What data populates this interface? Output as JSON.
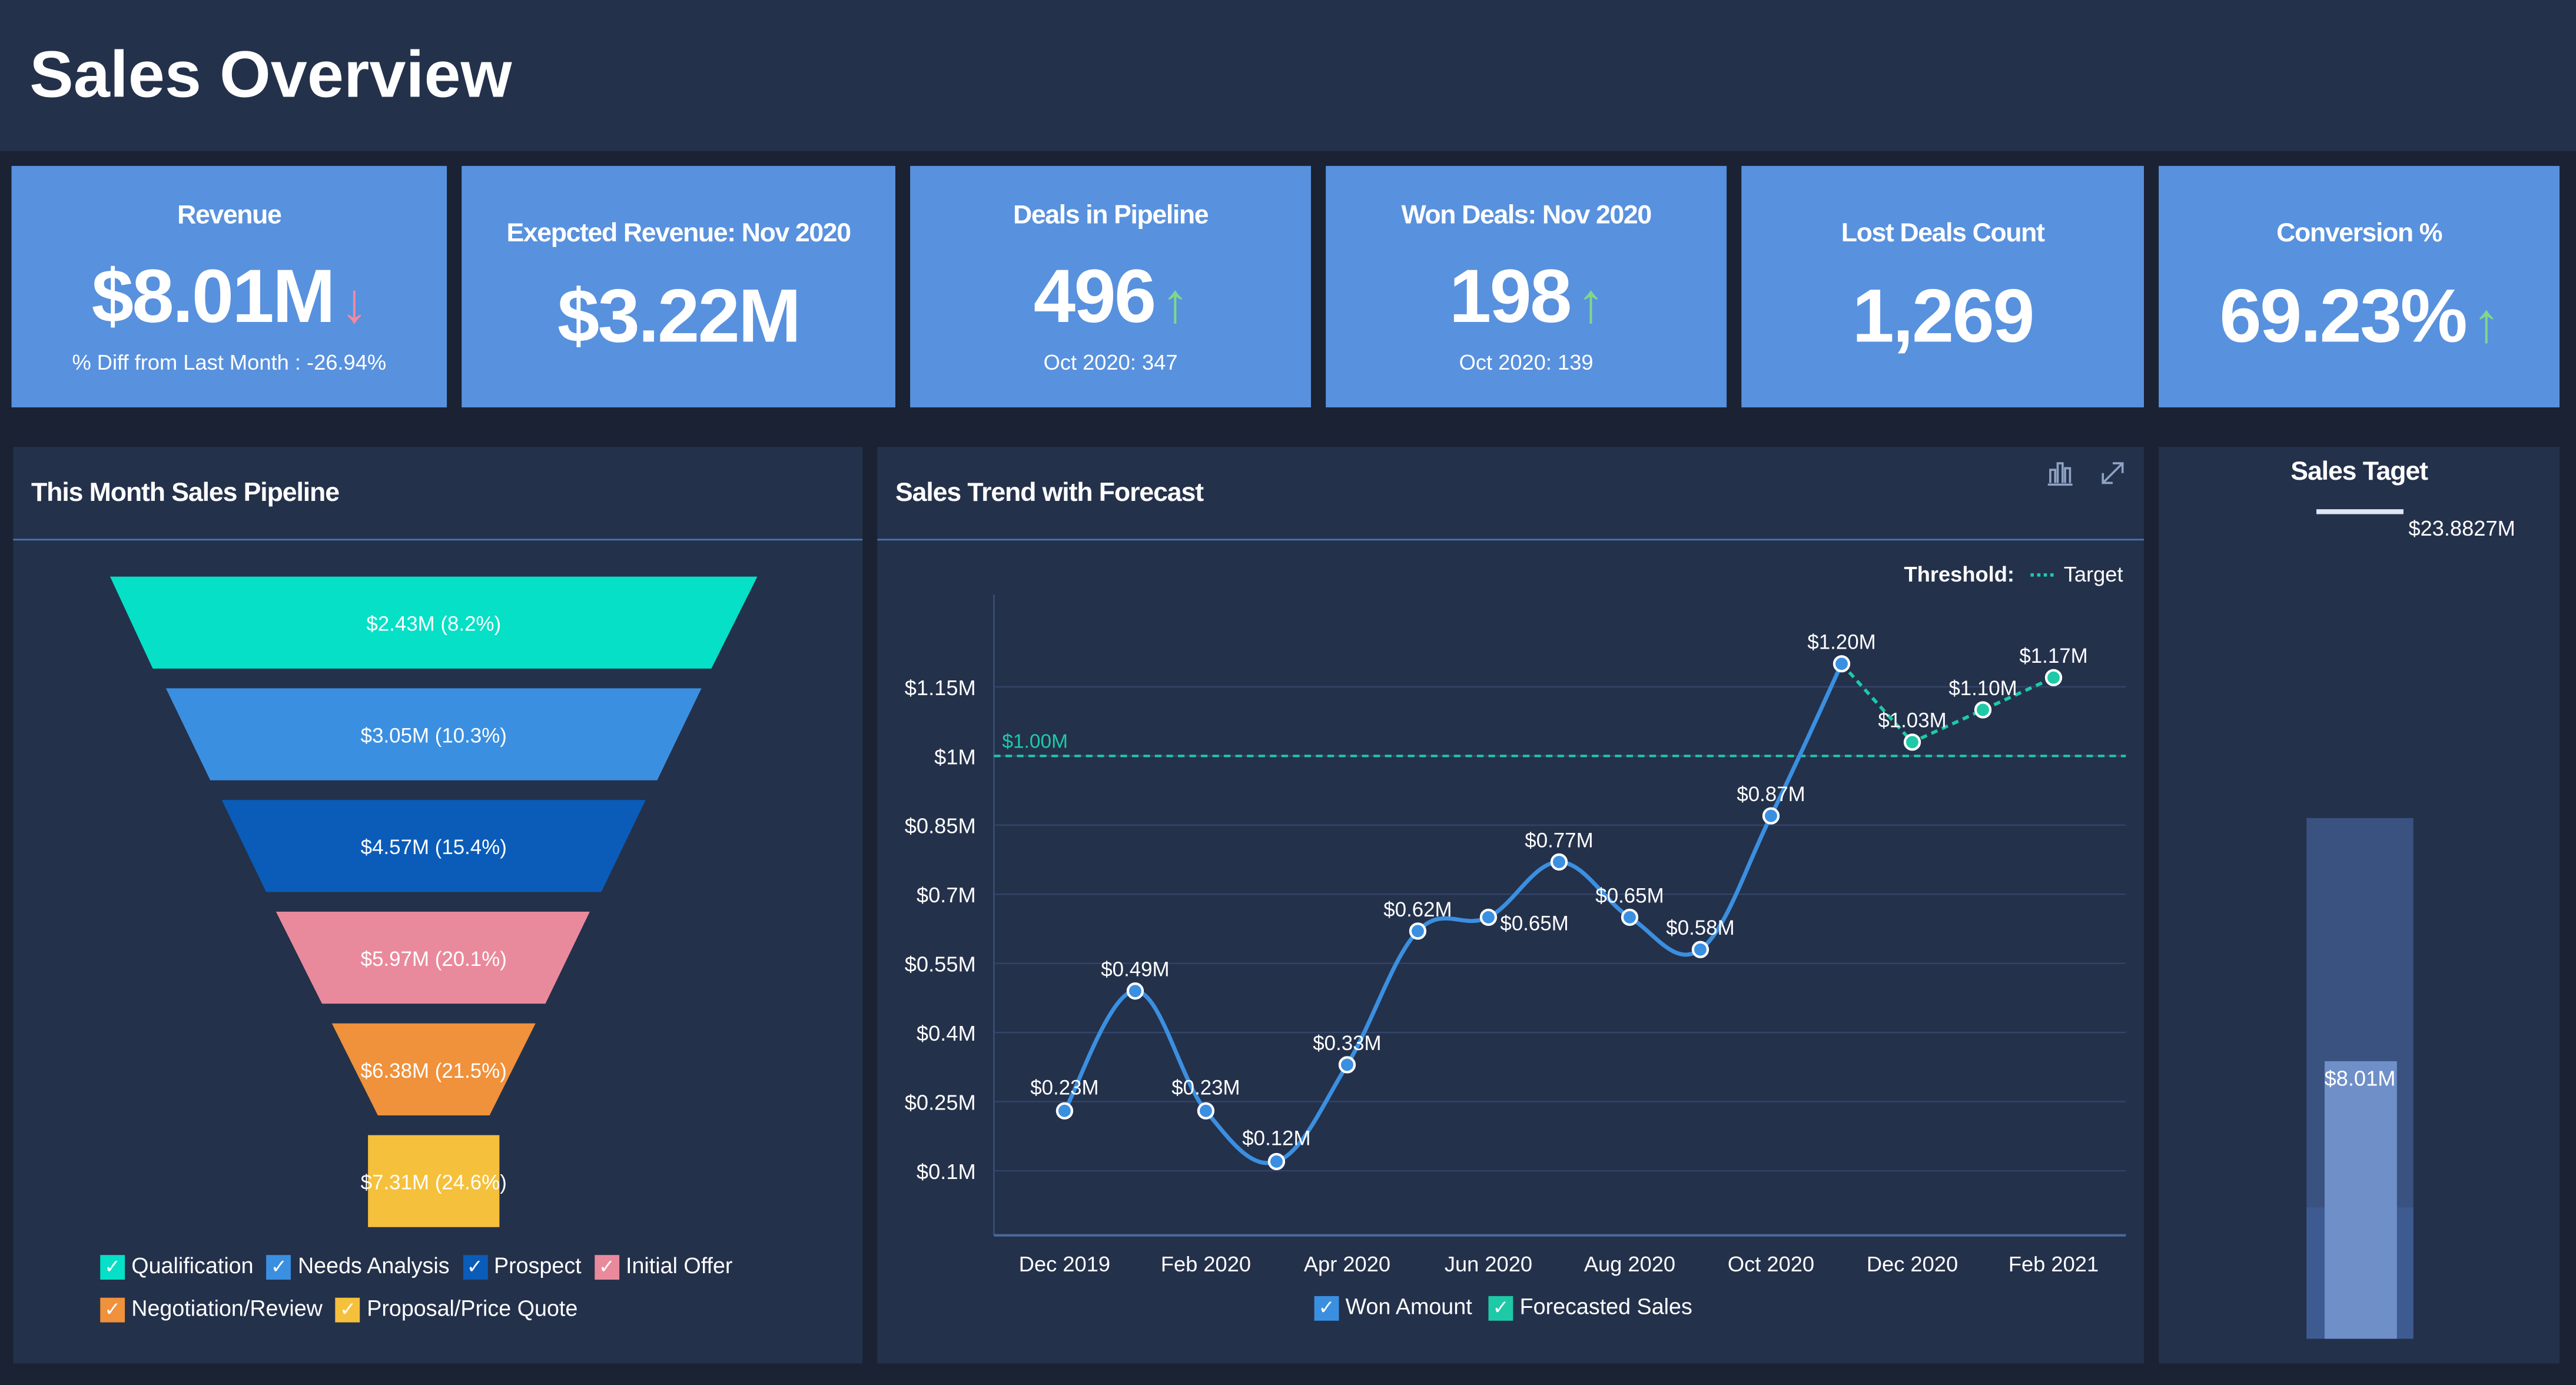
{
  "header": {
    "title": "Sales Overview"
  },
  "kpis": [
    {
      "title": "Revenue",
      "value": "$8.01M",
      "trend": "down",
      "sub": "% Diff from Last Month : -26.94%"
    },
    {
      "title": "Exepcted Revenue: Nov 2020",
      "value": "$3.22M"
    },
    {
      "title": "Deals in Pipeline",
      "value": "496",
      "trend": "up",
      "sub": "Oct 2020: 347"
    },
    {
      "title": "Won Deals: Nov 2020",
      "value": "198",
      "trend": "up",
      "sub": "Oct 2020: 139"
    },
    {
      "title": "Lost Deals Count",
      "value": "1,269"
    },
    {
      "title": "Conversion %",
      "value": "69.23%",
      "trend": "up"
    }
  ],
  "arrows": {
    "up": "↑",
    "down": "↓",
    "up_color": "#7fd88a",
    "down_color": "#f08aa0"
  },
  "funnel": {
    "title": "This Month Sales Pipeline",
    "stages": [
      {
        "name": "Qualification",
        "label": "$2.43M (8.2%)",
        "color": "#05e0c6"
      },
      {
        "name": "Needs Analysis",
        "label": "$3.05M (10.3%)",
        "color": "#3b8fe0"
      },
      {
        "name": "Prospect",
        "label": "$4.57M (15.4%)",
        "color": "#0a5cb8"
      },
      {
        "name": "Initial Offer",
        "label": "$5.97M (20.1%)",
        "color": "#e98a9c"
      },
      {
        "name": "Negotiation/Review",
        "label": "$6.38M (21.5%)",
        "color": "#f0913b"
      },
      {
        "name": "Proposal/Price Quote",
        "label": "$7.31M (24.6%)",
        "color": "#f5c03b"
      }
    ]
  },
  "trend": {
    "title": "Sales Trend with Forecast",
    "threshold_label": "Threshold:",
    "target_label": "Target",
    "icons": [
      "bar-chart-icon",
      "expand-icon"
    ]
  },
  "target": {
    "title": "Sales Taget",
    "target_value": "$23.8827M",
    "actual_label": "$8.01M",
    "target": 23.8827,
    "actual": 8.01
  },
  "chart_data": {
    "type": "line",
    "title": "Sales Trend with Forecast",
    "x": [
      "Dec 2019",
      "Jan 2020",
      "Feb 2020",
      "Mar 2020",
      "Apr 2020",
      "May 2020",
      "Jun 2020",
      "Jul 2020",
      "Aug 2020",
      "Sep 2020",
      "Oct 2020",
      "Nov 2020",
      "Dec 2020",
      "Jan 2021",
      "Feb 2021"
    ],
    "xtick_labels": [
      "Dec 2019",
      "Feb 2020",
      "Apr 2020",
      "Jun 2020",
      "Aug 2020",
      "Oct 2020",
      "Dec 2020",
      "Feb 2021"
    ],
    "ytick_values": [
      0.1,
      0.25,
      0.4,
      0.55,
      0.7,
      0.85,
      1,
      1.15
    ],
    "ytick_labels": [
      "$0.1M",
      "$0.25M",
      "$0.4M",
      "$0.55M",
      "$0.7M",
      "$0.85M",
      "$1M",
      "$1.15M"
    ],
    "ylim": [
      -0.04,
      1.35
    ],
    "series": [
      {
        "name": "Won Amount",
        "color": "#3b8fe0",
        "values": [
          0.23,
          0.49,
          0.23,
          0.12,
          0.33,
          0.62,
          0.65,
          0.77,
          0.65,
          0.58,
          0.87,
          1.2,
          null,
          null,
          null
        ],
        "labels": [
          "$0.23M",
          "$0.49M",
          "$0.23M",
          "$0.12M",
          "$0.33M",
          "$0.62M",
          "$0.65M",
          "$0.77M",
          "$0.65M",
          "$0.58M",
          "$0.87M",
          "$1.20M",
          "",
          "",
          ""
        ]
      },
      {
        "name": "Forecasted Sales",
        "color": "#1ec9a8",
        "values": [
          null,
          null,
          null,
          null,
          null,
          null,
          null,
          null,
          null,
          null,
          null,
          1.2,
          1.03,
          1.1,
          1.17
        ],
        "labels": [
          "",
          "",
          "",
          "",
          "",
          "",
          "",
          "",
          "",
          "",
          "",
          "",
          "$1.03M",
          "$1.10M",
          "$1.17M"
        ]
      }
    ],
    "threshold": {
      "value": 1.0,
      "label": "$1.00M",
      "name": "Target",
      "color": "#1ec9a8"
    },
    "grid": true,
    "legend": "bottom"
  }
}
